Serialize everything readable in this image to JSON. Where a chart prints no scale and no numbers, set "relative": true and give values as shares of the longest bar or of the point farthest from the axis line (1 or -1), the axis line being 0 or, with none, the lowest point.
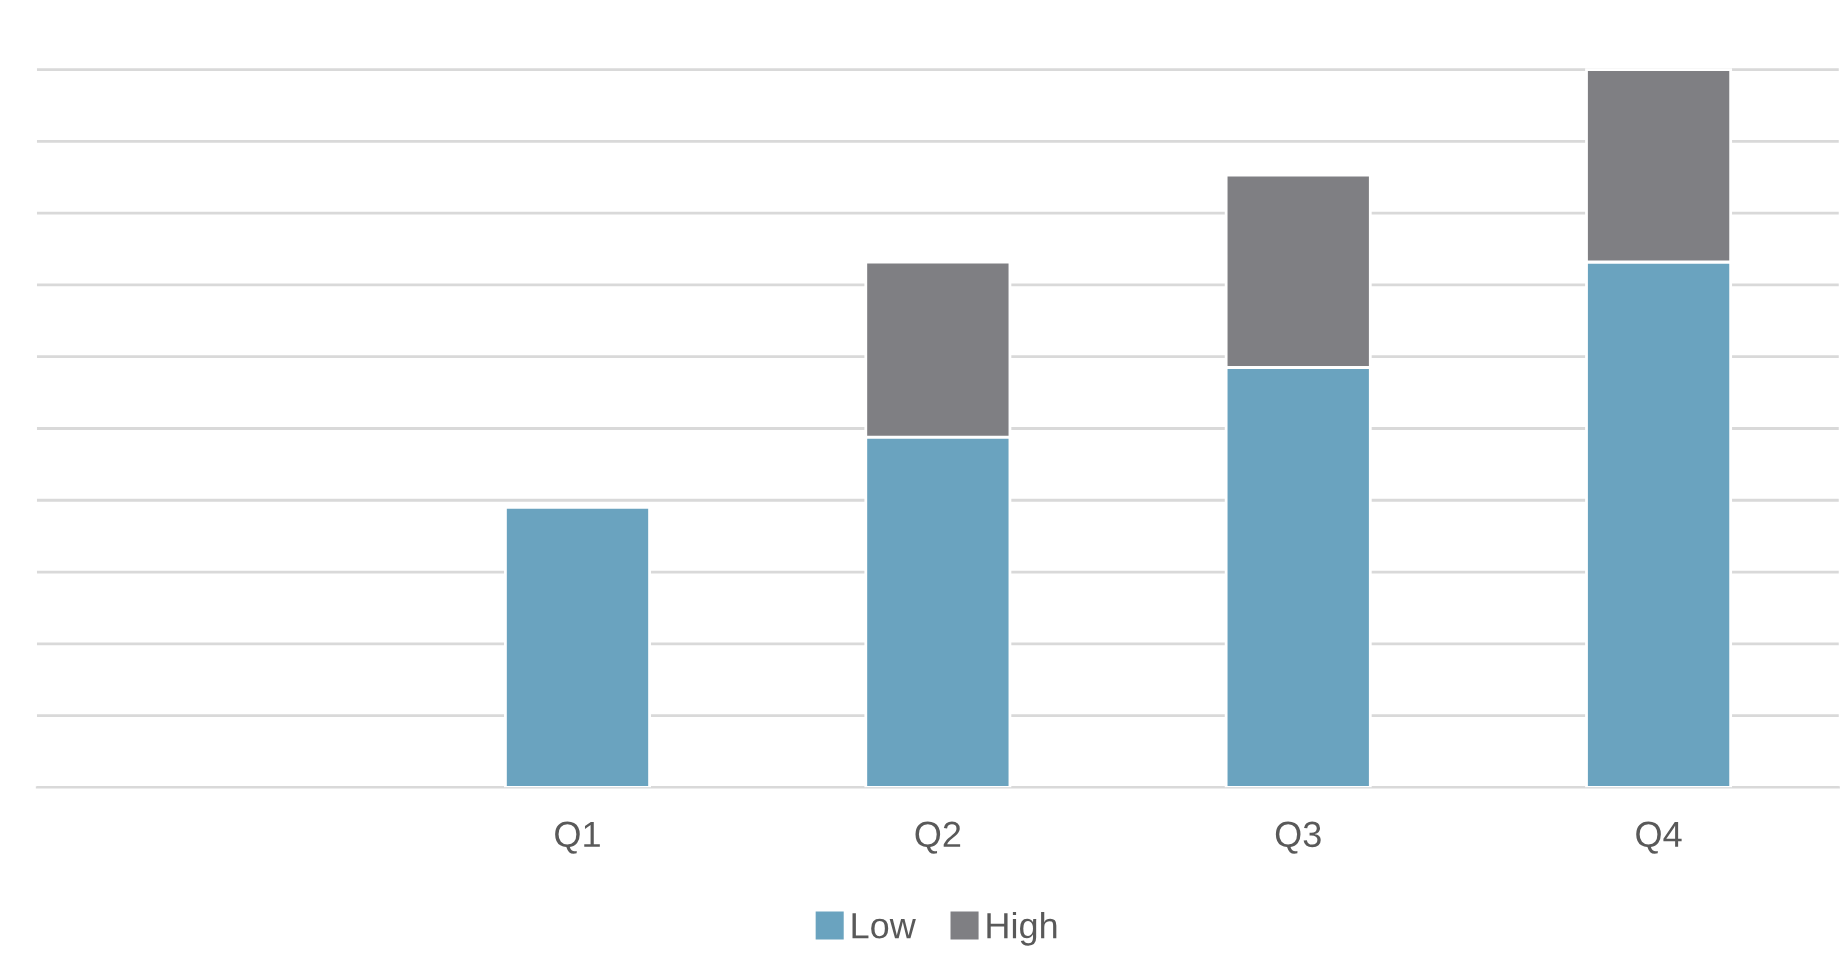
{
  "chart_data": {
    "type": "bar",
    "stacked": true,
    "relative": true,
    "grid": "y",
    "legend": "bottom",
    "categories": [
      null,
      "Q1",
      "Q2",
      "Q3",
      "Q4"
    ],
    "series": [
      {
        "name": "Low",
        "color": "#6aa3bf",
        "values": [
          null,
          0.39,
          0.488,
          0.585,
          0.732
        ]
      },
      {
        "name": "High",
        "color": "#7f7f83",
        "values": [
          null,
          null,
          0.244,
          0.268,
          0.268
        ]
      }
    ]
  }
}
